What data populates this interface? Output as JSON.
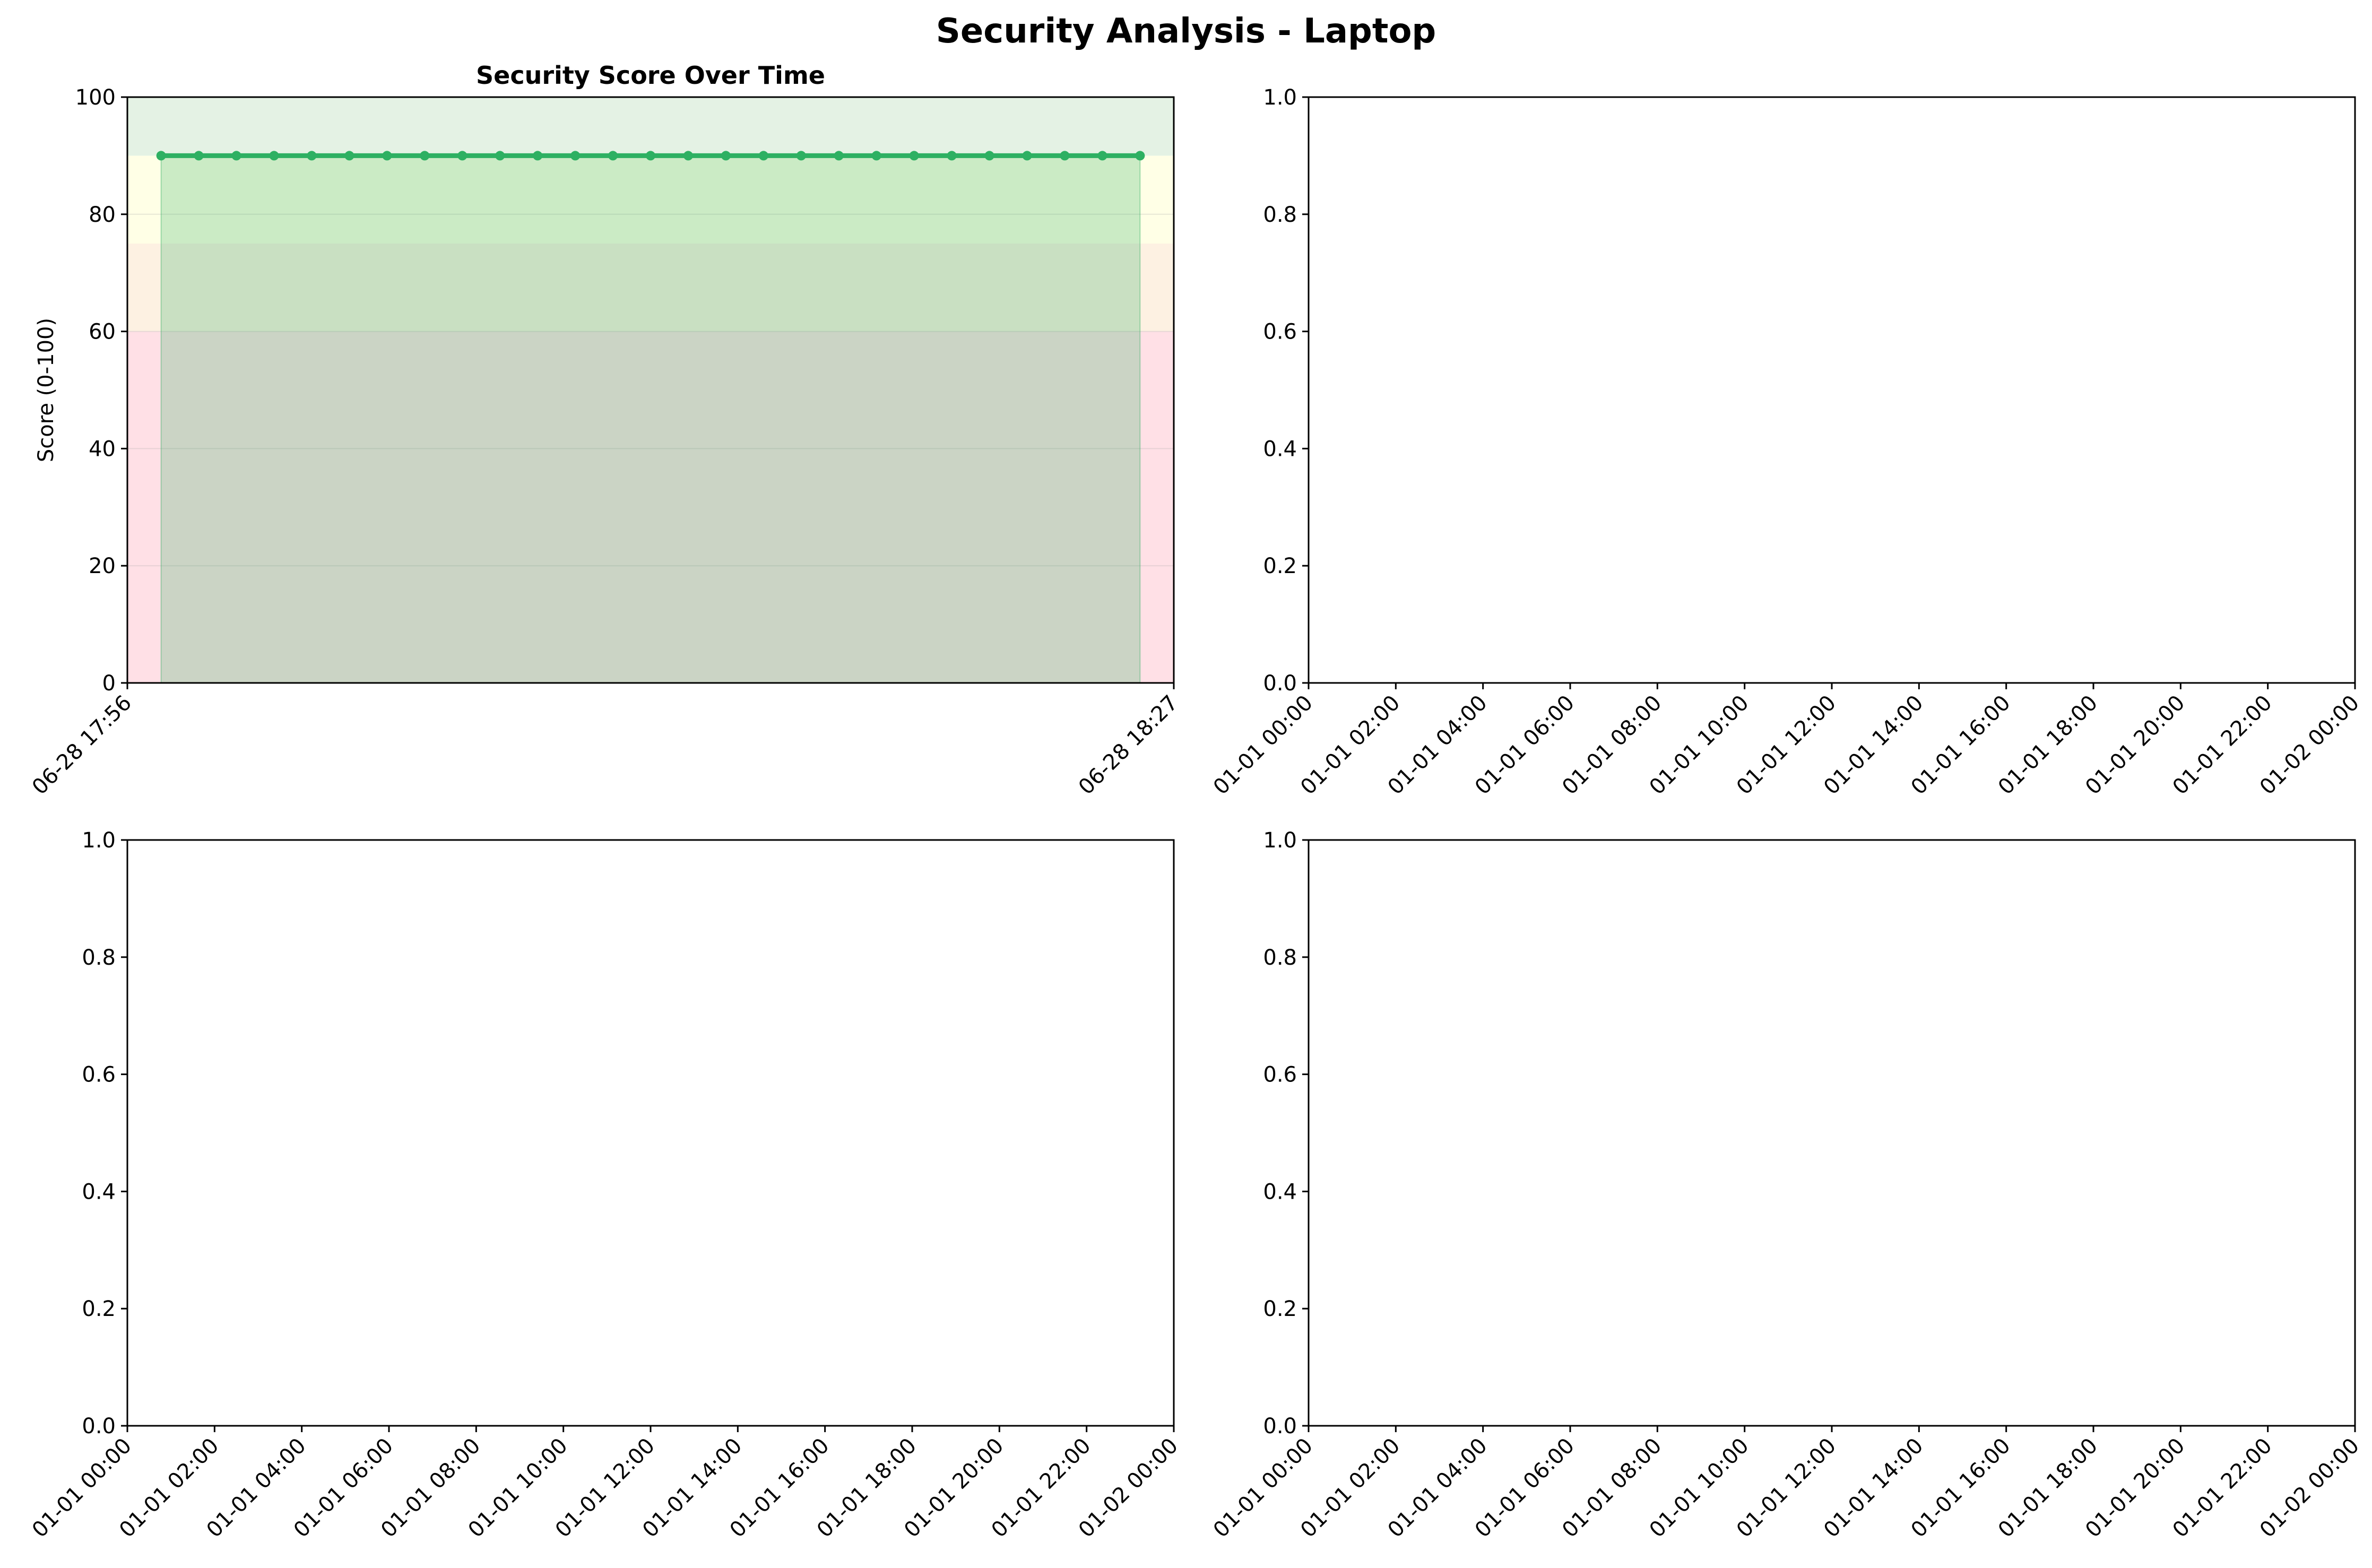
{
  "figure": {
    "suptitle": "Security Analysis - Laptop"
  },
  "chart_data": [
    {
      "type": "line",
      "title": "Security Score Over Time",
      "xlabel": "",
      "ylabel": "Score (0-100)",
      "ylim": [
        0,
        100
      ],
      "yticks": [
        0,
        20,
        40,
        60,
        80,
        100
      ],
      "xlim": [
        "06-28 17:56",
        "06-28 18:27"
      ],
      "xtick_labels": [
        "06-28 17:56",
        "06-28 18:27"
      ],
      "grid": true,
      "fill_under_line": true,
      "background_bands": [
        {
          "from": 0,
          "to": 60,
          "color": "#ffe0e6"
        },
        {
          "from": 60,
          "to": 75,
          "color": "#fdf1e2"
        },
        {
          "from": 75,
          "to": 90,
          "color": "#ffffe6"
        },
        {
          "from": 90,
          "to": 100,
          "color": "#e4f2e4"
        }
      ],
      "series": [
        {
          "color": "#2eb062",
          "x_start": "06-28 17:57",
          "x_end": "06-28 18:26",
          "values": [
            90,
            90,
            90,
            90,
            90,
            90,
            90,
            90,
            90,
            90,
            90,
            90,
            90,
            90,
            90,
            90,
            90,
            90,
            90,
            90,
            90,
            90,
            90,
            90,
            90,
            90,
            90
          ]
        }
      ]
    },
    {
      "type": "line",
      "title": "",
      "xlabel": "",
      "ylabel": "",
      "ylim": [
        0,
        1
      ],
      "yticks": [
        "0.0",
        "0.2",
        "0.4",
        "0.6",
        "0.8",
        "1.0"
      ],
      "xtick_labels": [
        "01-01 00:00",
        "01-01 02:00",
        "01-01 04:00",
        "01-01 06:00",
        "01-01 08:00",
        "01-01 10:00",
        "01-01 12:00",
        "01-01 14:00",
        "01-01 16:00",
        "01-01 18:00",
        "01-01 20:00",
        "01-01 22:00",
        "01-02 00:00"
      ],
      "series": []
    },
    {
      "type": "line",
      "title": "",
      "xlabel": "",
      "ylabel": "",
      "ylim": [
        0,
        1
      ],
      "yticks": [
        "0.0",
        "0.2",
        "0.4",
        "0.6",
        "0.8",
        "1.0"
      ],
      "xtick_labels": [
        "01-01 00:00",
        "01-01 02:00",
        "01-01 04:00",
        "01-01 06:00",
        "01-01 08:00",
        "01-01 10:00",
        "01-01 12:00",
        "01-01 14:00",
        "01-01 16:00",
        "01-01 18:00",
        "01-01 20:00",
        "01-01 22:00",
        "01-02 00:00"
      ],
      "series": []
    },
    {
      "type": "line",
      "title": "",
      "xlabel": "",
      "ylabel": "",
      "ylim": [
        0,
        1
      ],
      "yticks": [
        "0.0",
        "0.2",
        "0.4",
        "0.6",
        "0.8",
        "1.0"
      ],
      "xtick_labels": [
        "01-01 00:00",
        "01-01 02:00",
        "01-01 04:00",
        "01-01 06:00",
        "01-01 08:00",
        "01-01 10:00",
        "01-01 12:00",
        "01-01 14:00",
        "01-01 16:00",
        "01-01 18:00",
        "01-01 20:00",
        "01-01 22:00",
        "01-02 00:00"
      ],
      "series": []
    }
  ]
}
